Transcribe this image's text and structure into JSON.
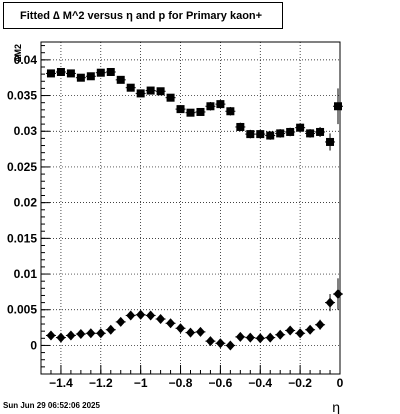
{
  "footer_text": "Sun Jun 29 06:52:06 2025",
  "chart_data": {
    "type": "scatter",
    "title": "Fitted ∆ M^2 versus η and p for Primary kaon+",
    "xlabel": "η",
    "ylabel": "∆M2",
    "xlim": [
      -1.5,
      0
    ],
    "ylim": [
      -0.004,
      0.0425
    ],
    "x_ticks": [
      "−1.4",
      "−1.2",
      "−1",
      "−0.8",
      "−0.6",
      "−0.4",
      "−0.2",
      "0"
    ],
    "x_tick_values": [
      -1.4,
      -1.2,
      -1.0,
      -0.8,
      -0.6,
      -0.4,
      -0.2,
      0
    ],
    "y_ticks": [
      "0",
      "0.005",
      "0.01",
      "0.015",
      "0.02",
      "0.025",
      "0.03",
      "0.035",
      "0.04"
    ],
    "y_tick_values": [
      0,
      0.005,
      0.01,
      0.015,
      0.02,
      0.025,
      0.03,
      0.035,
      0.04
    ],
    "grid": true,
    "series": [
      {
        "marker": "square",
        "color": "#000000",
        "x": [
          -1.45,
          -1.4,
          -1.35,
          -1.3,
          -1.25,
          -1.2,
          -1.15,
          -1.1,
          -1.05,
          -1.0,
          -0.95,
          -0.9,
          -0.85,
          -0.8,
          -0.75,
          -0.7,
          -0.65,
          -0.6,
          -0.55,
          -0.5,
          -0.45,
          -0.4,
          -0.35,
          -0.3,
          -0.25,
          -0.2,
          -0.15,
          -0.1,
          -0.05,
          -0.01
        ],
        "y": [
          0.0381,
          0.0383,
          0.0381,
          0.0375,
          0.0377,
          0.0382,
          0.0383,
          0.0372,
          0.0361,
          0.0353,
          0.0357,
          0.0356,
          0.0347,
          0.0331,
          0.0326,
          0.0327,
          0.0335,
          0.0338,
          0.0328,
          0.0306,
          0.0296,
          0.0296,
          0.0294,
          0.0297,
          0.0299,
          0.0305,
          0.0297,
          0.0299,
          0.0285,
          0.0335
        ],
        "yerr": [
          0.0005,
          0.0005,
          0.0005,
          0.0005,
          0.0005,
          0.0005,
          0.0005,
          0.0005,
          0.0005,
          0.0005,
          0.0005,
          0.0005,
          0.0005,
          0.0005,
          0.0005,
          0.0005,
          0.0006,
          0.0006,
          0.0006,
          0.0006,
          0.0006,
          0.0006,
          0.0006,
          0.0006,
          0.0006,
          0.0006,
          0.0006,
          0.0007,
          0.0012,
          0.0025
        ]
      },
      {
        "marker": "diamond",
        "color": "#000000",
        "x": [
          -1.45,
          -1.4,
          -1.35,
          -1.3,
          -1.25,
          -1.2,
          -1.15,
          -1.1,
          -1.05,
          -1.0,
          -0.95,
          -0.9,
          -0.85,
          -0.8,
          -0.75,
          -0.7,
          -0.65,
          -0.6,
          -0.55,
          -0.5,
          -0.45,
          -0.4,
          -0.35,
          -0.3,
          -0.25,
          -0.2,
          -0.15,
          -0.1,
          -0.05,
          -0.01
        ],
        "y": [
          0.0014,
          0.0011,
          0.0014,
          0.0016,
          0.0017,
          0.0017,
          0.0022,
          0.0033,
          0.0042,
          0.0043,
          0.0042,
          0.0037,
          0.0031,
          0.0024,
          0.0018,
          0.0019,
          0.0006,
          0.0003,
          0.0,
          0.0012,
          0.0011,
          0.001,
          0.0011,
          0.0015,
          0.0021,
          0.0017,
          0.0022,
          0.0029,
          0.006,
          0.0072
        ],
        "yerr": [
          0.0005,
          0.0005,
          0.0005,
          0.0005,
          0.0005,
          0.0005,
          0.0005,
          0.0005,
          0.0005,
          0.0005,
          0.0005,
          0.0005,
          0.0005,
          0.0005,
          0.0005,
          0.0005,
          0.0005,
          0.0005,
          0.0005,
          0.0005,
          0.0005,
          0.0005,
          0.0005,
          0.0005,
          0.0005,
          0.0005,
          0.0005,
          0.0007,
          0.0012,
          0.0022
        ]
      }
    ]
  }
}
